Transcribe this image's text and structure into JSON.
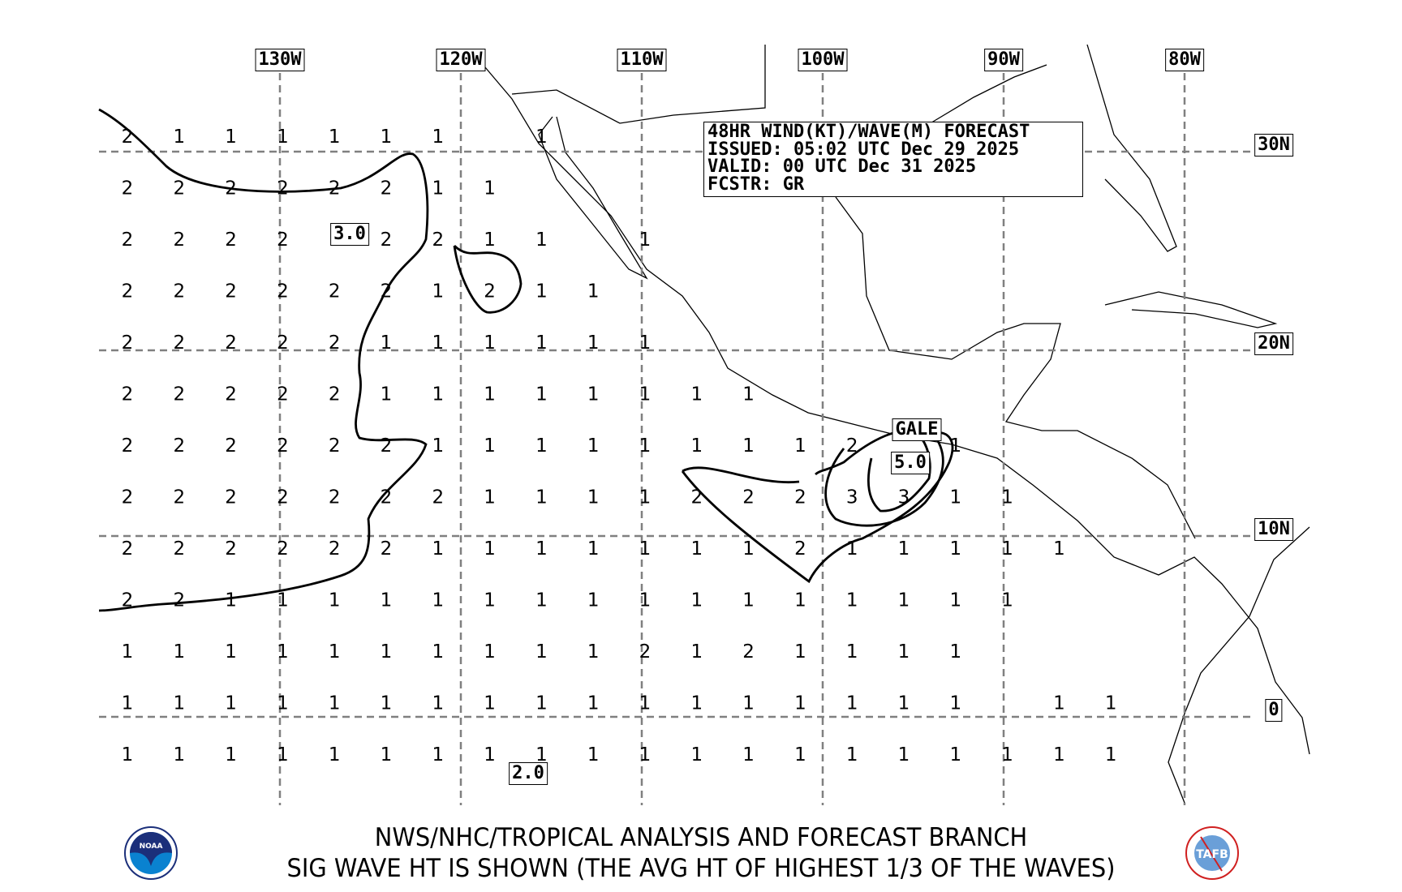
{
  "info": {
    "title": "48HR WIND(KT)/WAVE(M) FORECAST",
    "issued": "ISSUED: 05:02 UTC Dec 29 2025",
    "valid": "VALID: 00 UTC Dec 31 2025",
    "forecaster": "FCSTR: GR"
  },
  "longitude_labels": [
    "130W",
    "120W",
    "110W",
    "100W",
    "90W",
    "80W"
  ],
  "latitude_labels": [
    "30N",
    "20N",
    "10N",
    "0"
  ],
  "wave_labels": {
    "north_max": "3.0",
    "gale": "GALE",
    "gale_max": "5.0",
    "south_max": "2.0"
  },
  "wave_heights_m": [
    [
      2,
      1,
      1,
      1,
      1,
      1,
      1,
      null,
      1
    ],
    [
      2,
      2,
      2,
      2,
      2,
      2,
      1,
      1
    ],
    [
      2,
      2,
      2,
      2,
      null,
      2,
      2,
      1,
      1,
      null,
      1
    ],
    [
      2,
      2,
      2,
      2,
      2,
      2,
      1,
      2,
      1,
      1
    ],
    [
      2,
      2,
      2,
      2,
      2,
      1,
      1,
      1,
      1,
      1,
      1
    ],
    [
      2,
      2,
      2,
      2,
      2,
      1,
      1,
      1,
      1,
      1,
      1,
      1,
      1
    ],
    [
      2,
      2,
      2,
      2,
      2,
      2,
      1,
      1,
      1,
      1,
      1,
      1,
      1,
      1,
      2,
      null,
      1
    ],
    [
      2,
      2,
      2,
      2,
      2,
      2,
      2,
      1,
      1,
      1,
      1,
      2,
      2,
      2,
      3,
      3,
      1,
      1
    ],
    [
      2,
      2,
      2,
      2,
      2,
      2,
      1,
      1,
      1,
      1,
      1,
      1,
      1,
      2,
      1,
      1,
      1,
      1,
      1
    ],
    [
      2,
      2,
      1,
      1,
      1,
      1,
      1,
      1,
      1,
      1,
      1,
      1,
      1,
      1,
      1,
      1,
      1,
      1
    ],
    [
      1,
      1,
      1,
      1,
      1,
      1,
      1,
      1,
      1,
      1,
      2,
      1,
      2,
      1,
      1,
      1,
      1
    ],
    [
      1,
      1,
      1,
      1,
      1,
      1,
      1,
      1,
      1,
      1,
      1,
      1,
      1,
      1,
      1,
      1,
      1,
      null,
      1,
      1
    ],
    [
      1,
      1,
      1,
      1,
      1,
      1,
      1,
      1,
      1,
      1,
      1,
      1,
      1,
      1,
      1,
      1,
      1,
      1,
      1,
      1
    ]
  ],
  "footer": {
    "line1": "NWS/NHC/TROPICAL ANALYSIS AND FORECAST BRANCH",
    "line2": "SIG WAVE HT IS SHOWN (THE AVG HT OF HIGHEST 1/3 OF THE WAVES)"
  },
  "logos": {
    "left": "NOAA",
    "right": "TAFB"
  },
  "colors": {
    "grid": "#808080",
    "contour": "#000000",
    "noaa_blue": "#0a82d0",
    "noaa_navy": "#1b2f7a",
    "tafb_red": "#d02020"
  }
}
